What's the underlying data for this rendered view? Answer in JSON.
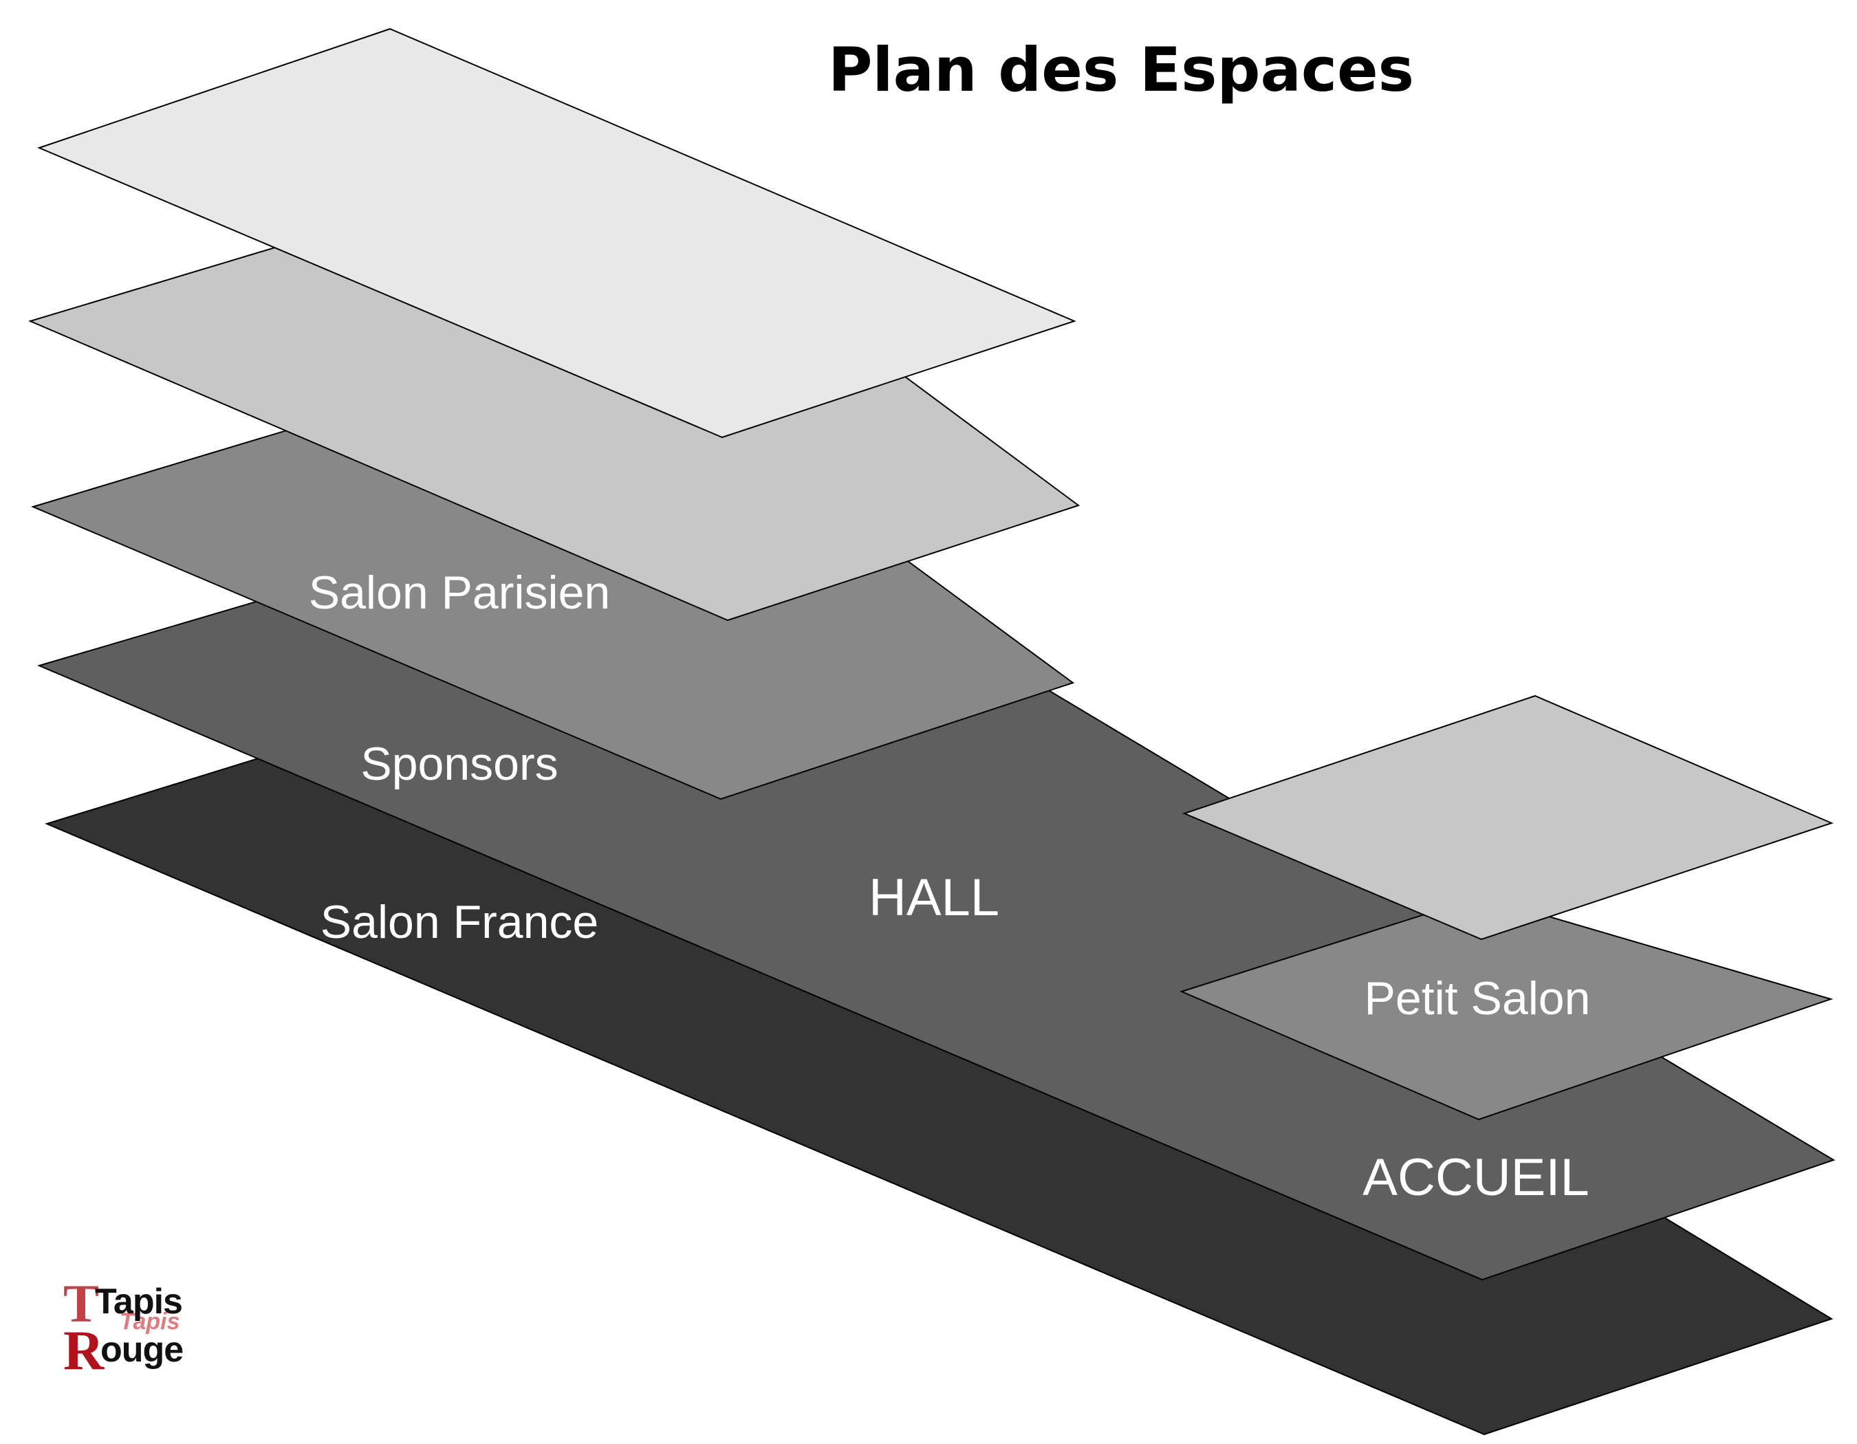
{
  "title": "Plan des Espaces",
  "floors": [
    {
      "id": "base",
      "label": "Salon France",
      "fill": "#333333"
    },
    {
      "id": "hall",
      "label": "Sponsors",
      "fill": "#5f5f5f"
    },
    {
      "id": "hall-center",
      "label": "HALL",
      "fill": "#5f5f5f"
    },
    {
      "id": "parisien",
      "label": "Salon Parisien",
      "fill": "#888888"
    },
    {
      "id": "upper",
      "label": "",
      "fill": "#c7c7c7"
    },
    {
      "id": "top",
      "label": "",
      "fill": "#e8e8e8"
    },
    {
      "id": "accueil",
      "label": "ACCUEIL",
      "fill": "#5f5f5f"
    },
    {
      "id": "petit-salon",
      "label": "Petit Salon",
      "fill": "#888888"
    },
    {
      "id": "petit-top",
      "label": "",
      "fill": "#c7c7c7"
    }
  ],
  "logo": {
    "line1": "Tapis",
    "line2": "Rouge",
    "accent_color": "#b1121b"
  }
}
